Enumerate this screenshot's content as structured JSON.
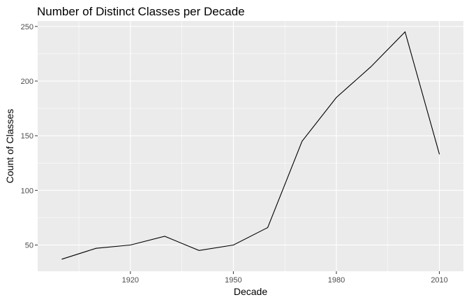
{
  "chart_data": {
    "type": "line",
    "title": "Number of Distinct Classes per Decade",
    "xlabel": "Decade",
    "ylabel": "Count of Classes",
    "x": [
      1900,
      1910,
      1920,
      1930,
      1940,
      1950,
      1960,
      1970,
      1980,
      1990,
      2000,
      2010
    ],
    "series": [
      {
        "values": [
          37,
          47,
          50,
          58,
          45,
          50,
          66,
          145,
          185,
          213,
          245,
          133
        ]
      }
    ],
    "xlim": [
      1893,
      2017
    ],
    "ylim": [
      26,
      255
    ],
    "x_ticks": [
      1920,
      1950,
      1980,
      2010
    ],
    "x_tick_labels": [
      "1920",
      "1950",
      "1980",
      "2010"
    ],
    "y_ticks": [
      50,
      100,
      150,
      200,
      250
    ],
    "y_tick_labels": [
      "50",
      "100",
      "150",
      "200",
      "250"
    ],
    "grid": true,
    "colors": {
      "panel": "#ebebeb",
      "grid": "#ffffff",
      "line": "#000000",
      "tick_text": "#4d4d4d"
    }
  }
}
